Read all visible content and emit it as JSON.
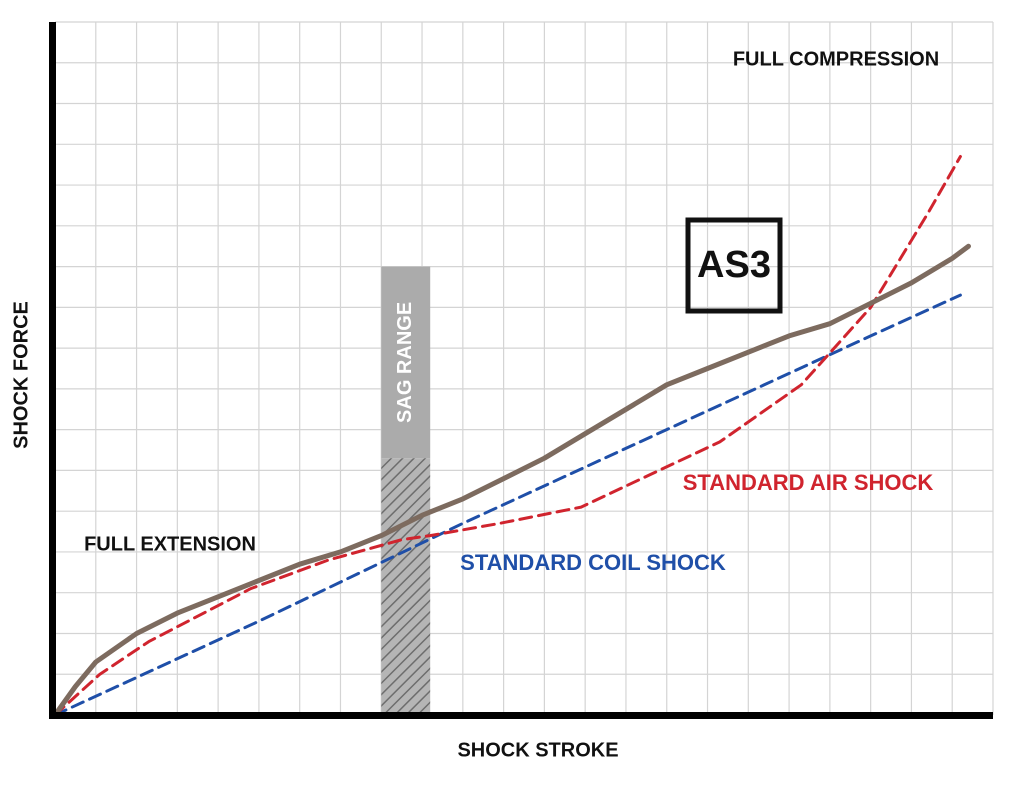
{
  "chart_data": {
    "type": "line",
    "title": "AS3",
    "x_label": "SHOCK STROKE",
    "y_label": "SHOCK FORCE",
    "annotations": [
      "FULL COMPRESSION",
      "FULL EXTENSION"
    ],
    "xlim": [
      0,
      23
    ],
    "ylim": [
      0,
      17
    ],
    "grid": true,
    "sag_range": {
      "label": "SAG RANGE",
      "x": [
        8.0,
        9.2
      ],
      "top": 11.0,
      "hatch_top": 6.3
    },
    "series": [
      {
        "name": "AS3",
        "color": "#7d6b5f",
        "style": "solid",
        "x": [
          0,
          0.5,
          1,
          2,
          3,
          4,
          5,
          6,
          7,
          8,
          9,
          10,
          11,
          12,
          13,
          14,
          15,
          16,
          17,
          18,
          19,
          20,
          21,
          22,
          22.4
        ],
        "values": [
          0,
          0.7,
          1.3,
          2.0,
          2.5,
          2.9,
          3.3,
          3.7,
          4.0,
          4.4,
          4.9,
          5.3,
          5.8,
          6.3,
          6.9,
          7.5,
          8.1,
          8.5,
          8.9,
          9.3,
          9.6,
          10.1,
          10.6,
          11.2,
          11.5
        ]
      },
      {
        "name": "STANDARD AIR SHOCK",
        "color": "#d0242e",
        "style": "dashed",
        "x": [
          0,
          1.1,
          2.3,
          4.8,
          6.7,
          8.5,
          9.2,
          10.9,
          12.9,
          14.6,
          16.3,
          18.3,
          20.0,
          21.4,
          22.2
        ],
        "values": [
          0,
          1.0,
          1.8,
          3.1,
          3.8,
          4.3,
          4.4,
          4.7,
          5.1,
          5.9,
          6.7,
          8.1,
          10.0,
          12.3,
          13.7
        ]
      },
      {
        "name": "STANDARD COIL SHOCK",
        "color": "#1f4fa8",
        "style": "dashed",
        "x": [
          0,
          5,
          10,
          15,
          20,
          22.2
        ],
        "values": [
          0,
          2.3,
          4.7,
          7.0,
          9.3,
          10.3
        ]
      }
    ]
  }
}
